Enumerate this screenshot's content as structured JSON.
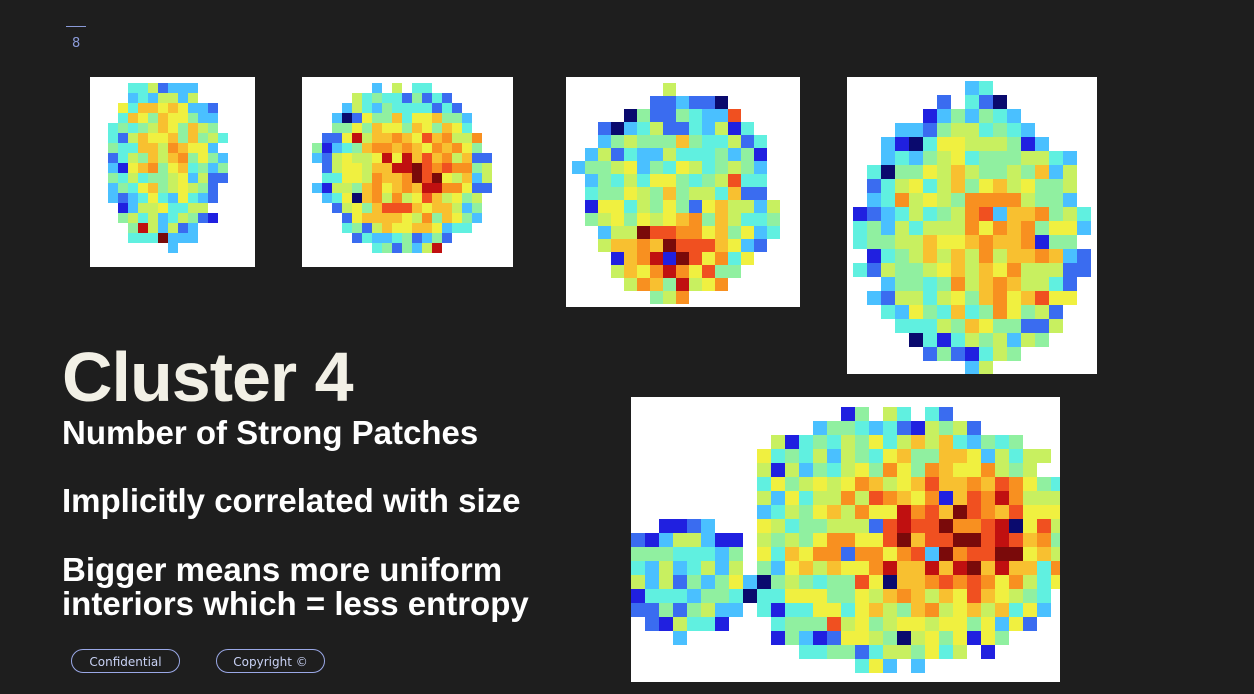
{
  "slide": {
    "number": "8"
  },
  "title": "Cluster 4",
  "subtitle": "Number of Strong Patches",
  "points": [
    "Implicitly correlated with size",
    "Bigger means more uniform interiors which = less entropy"
  ],
  "footer": {
    "confidential": "Confidential",
    "copyright": "Copyright ©"
  },
  "colors": {
    "background": "#1e1e1e",
    "title": "#f2f0e6",
    "accent": "#9aa8e6",
    "heatmap_scale": [
      "#0a0a6e",
      "#2020e0",
      "#3a6cf0",
      "#4ac0ff",
      "#60f0e0",
      "#90f0a0",
      "#c8f060",
      "#f0f040",
      "#f8c030",
      "#f89020",
      "#f05020",
      "#c01010",
      "#7a0a0a"
    ]
  }
}
